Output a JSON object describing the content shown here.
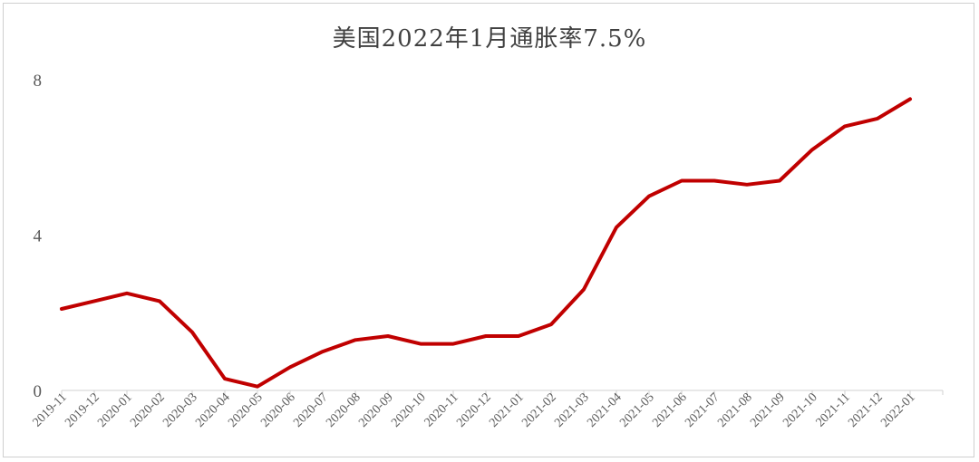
{
  "chart_data": {
    "type": "line",
    "title": "美国2022年1月通胀率7.5%",
    "xlabel": "",
    "ylabel": "",
    "ylim": [
      0,
      8
    ],
    "yticks": [
      "0",
      "4",
      "8"
    ],
    "grid": false,
    "legend": "none",
    "categories": [
      "2019-11",
      "2019-12",
      "2020-01",
      "2020-02",
      "2020-03",
      "2020-04",
      "2020-05",
      "2020-06",
      "2020-07",
      "2020-08",
      "2020-09",
      "2020-10",
      "2020-11",
      "2020-12",
      "2021-01",
      "2021-02",
      "2021-03",
      "2021-04",
      "2021-05",
      "2021-06",
      "2021-07",
      "2021-08",
      "2021-09",
      "2021-10",
      "2021-11",
      "2021-12",
      "2022-01"
    ],
    "series": [
      {
        "values": [
          2.1,
          2.3,
          2.5,
          2.3,
          1.5,
          0.3,
          0.1,
          0.6,
          1.0,
          1.3,
          1.4,
          1.2,
          1.2,
          1.4,
          1.4,
          1.7,
          2.6,
          4.2,
          5.0,
          5.4,
          5.4,
          5.3,
          5.4,
          6.2,
          6.8,
          7.0,
          7.5
        ],
        "color": "#c00000"
      }
    ]
  }
}
